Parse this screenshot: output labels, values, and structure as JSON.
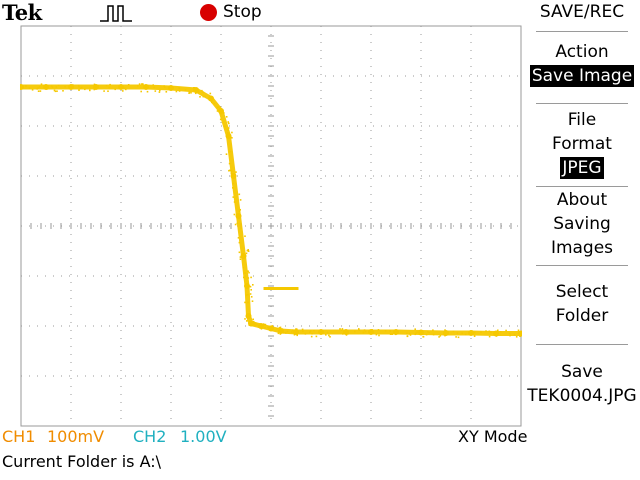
{
  "top_bar": {
    "brand": "Tek",
    "trigger_icon": "pulse-trigger-icon",
    "run_state_icon": "stop-dot-icon",
    "run_state": "Stop"
  },
  "menu": {
    "title": "SAVE/REC",
    "action": {
      "label": "Action",
      "value": "Save Image"
    },
    "file_format": {
      "label_line1": "File",
      "label_line2": "Format",
      "value": "JPEG"
    },
    "about": {
      "line1": "About",
      "line2": "Saving",
      "line3": "Images"
    },
    "select_folder": {
      "line1": "Select",
      "line2": "Folder"
    },
    "save": {
      "label": "Save",
      "filename": "TEK0004.JPG"
    }
  },
  "status": {
    "ch1": {
      "name": "CH1",
      "scale": "100mV"
    },
    "ch2": {
      "name": "CH2",
      "scale": "1.00V"
    },
    "mode": "XY Mode",
    "folder_message": "Current Folder is A:\\"
  },
  "colors": {
    "trace": "#f5c800",
    "ch1": "#f08c00",
    "ch2": "#20b0c0",
    "stop": "#d80000",
    "grid": "#9a9a9a"
  },
  "chart_data": {
    "type": "scatter",
    "title": "",
    "xlabel": "",
    "ylabel": "",
    "grid": true,
    "grid_divisions": {
      "x": 10,
      "y": 8
    },
    "x_unit": "div",
    "y_unit": "div",
    "xlim": [
      -5,
      5
    ],
    "ylim": [
      -4,
      4
    ],
    "series": [
      {
        "points": [
          [
            -5.0,
            2.78
          ],
          [
            -4.5,
            2.78
          ],
          [
            -4.0,
            2.78
          ],
          [
            -3.5,
            2.78
          ],
          [
            -3.0,
            2.78
          ],
          [
            -2.5,
            2.78
          ],
          [
            -2.0,
            2.76
          ],
          [
            -1.5,
            2.72
          ],
          [
            -1.2,
            2.55
          ],
          [
            -1.0,
            2.3
          ],
          [
            -0.85,
            1.8
          ],
          [
            -0.75,
            1.0
          ],
          [
            -0.65,
            0.2
          ],
          [
            -0.55,
            -0.6
          ],
          [
            -0.48,
            -1.2
          ],
          [
            -0.45,
            -1.8
          ],
          [
            -0.4,
            -1.95
          ],
          [
            -0.2,
            -2.0
          ],
          [
            0.0,
            -2.05
          ],
          [
            0.2,
            -2.1
          ],
          [
            0.5,
            -2.12
          ],
          [
            1.0,
            -2.12
          ],
          [
            1.5,
            -2.12
          ],
          [
            2.0,
            -2.12
          ],
          [
            2.5,
            -2.12
          ],
          [
            3.0,
            -2.13
          ],
          [
            3.5,
            -2.14
          ],
          [
            4.0,
            -2.14
          ],
          [
            4.5,
            -2.15
          ],
          [
            5.0,
            -2.15
          ]
        ]
      }
    ],
    "extra_points": [
      [
        -0.15,
        -1.25
      ],
      [
        0.3,
        -1.25
      ],
      [
        0.55,
        -1.25
      ]
    ]
  }
}
